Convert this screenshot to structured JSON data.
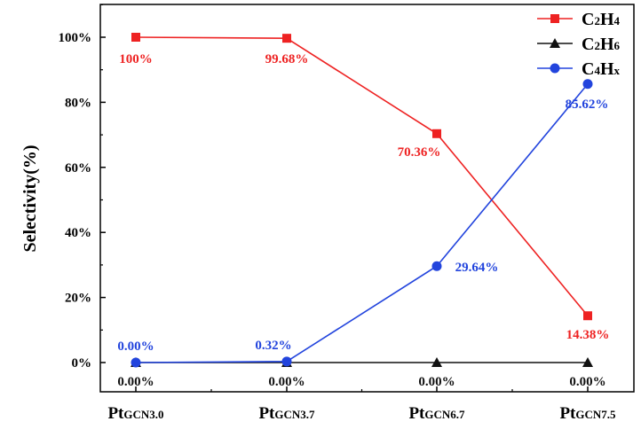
{
  "chart_data": {
    "type": "line",
    "title": "",
    "xlabel": "",
    "ylabel": "Selectivity(%)",
    "ylim": [
      0,
      110
    ],
    "yticks": [
      "0%",
      "20%",
      "40%",
      "60%",
      "80%",
      "100%"
    ],
    "ytick_values": [
      0,
      20,
      40,
      60,
      80,
      100
    ],
    "categories": [
      {
        "base": "Pt",
        "sub": "GCN3.0"
      },
      {
        "base": "Pt",
        "sub": "GCN3.7"
      },
      {
        "base": "Pt",
        "sub": "GCN6.7"
      },
      {
        "base": "Pt",
        "sub": "GCN7.5"
      }
    ],
    "legend_position": "top-right",
    "grid": false,
    "series": [
      {
        "name": "C2H4",
        "legend": {
          "l1": "C",
          "s1": "2",
          "l2": "H",
          "s2": "4"
        },
        "color": "#ee2222",
        "marker": "square",
        "values": [
          100,
          99.68,
          70.36,
          14.38
        ],
        "labels": [
          "100%",
          "99.68%",
          "70.36%",
          "14.38%"
        ]
      },
      {
        "name": "C2H6",
        "legend": {
          "l1": "C",
          "s1": "2",
          "l2": "H",
          "s2": "6"
        },
        "color": "#111111",
        "marker": "triangle",
        "values": [
          0,
          0,
          0,
          0
        ],
        "labels": [
          "0.00%",
          "0.00%",
          "0.00%",
          "0.00%"
        ]
      },
      {
        "name": "C4Hx",
        "legend": {
          "l1": "C",
          "s1": "4",
          "l2": "H",
          "s2": "x"
        },
        "color": "#2244dd",
        "marker": "circle",
        "values": [
          0.0,
          0.32,
          29.64,
          85.62
        ],
        "labels": [
          "0.00%",
          "0.32%",
          "29.64%",
          "85.62%"
        ]
      }
    ]
  }
}
